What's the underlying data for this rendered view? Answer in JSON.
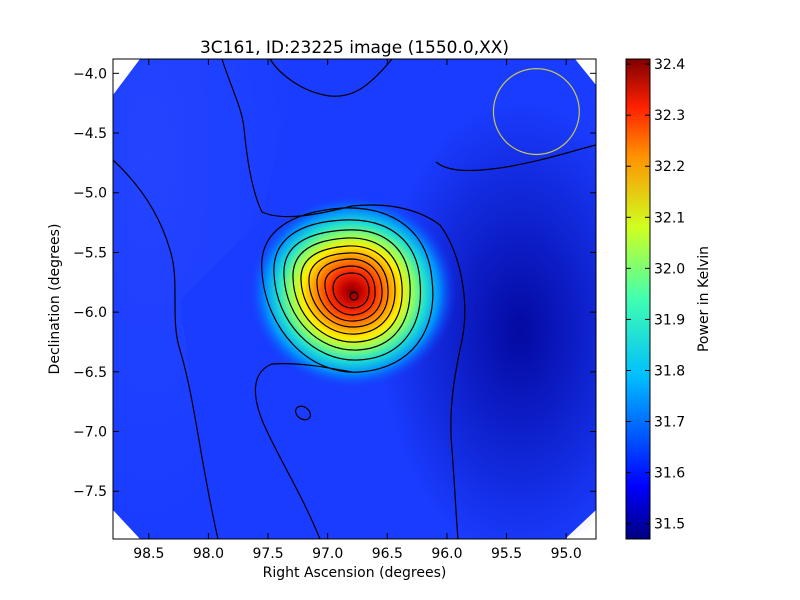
{
  "chart_data": {
    "type": "heatmap",
    "title": "3C161, ID:23225 image (1550.0,XX)",
    "xlabel": "Right Ascension (degrees)",
    "ylabel": "Declination (degrees)",
    "xlim": [
      98.8,
      94.75
    ],
    "ylim": [
      -7.9,
      -3.88
    ],
    "x_ticks": [
      "98.5",
      "98.0",
      "97.5",
      "97.0",
      "96.5",
      "96.0",
      "95.5",
      "95.0"
    ],
    "x_tick_values": [
      98.5,
      98.0,
      97.5,
      97.0,
      96.5,
      96.0,
      95.5,
      95.0
    ],
    "y_ticks": [
      "−4.0",
      "−4.5",
      "−5.0",
      "−5.5",
      "−6.0",
      "−6.5",
      "−7.0",
      "−7.5"
    ],
    "y_tick_values": [
      -4.0,
      -4.5,
      -5.0,
      -5.5,
      -6.0,
      -6.5,
      -7.0,
      -7.5
    ],
    "colorbar": {
      "label": "Power in Kelvin",
      "range": [
        31.47,
        32.41
      ],
      "ticks": [
        "31.5",
        "31.6",
        "31.7",
        "31.8",
        "31.9",
        "32.0",
        "32.1",
        "32.2",
        "32.3",
        "32.4"
      ],
      "tick_values": [
        31.5,
        31.6,
        31.7,
        31.8,
        31.9,
        32.0,
        32.1,
        32.2,
        32.3,
        32.4
      ],
      "colormap": "jet"
    },
    "peak": {
      "ra": 96.78,
      "dec": -5.87,
      "value": 32.41
    },
    "beam_circle": {
      "ra": 95.25,
      "dec": -4.32,
      "radius_deg": 0.36,
      "color": "#c8c850"
    },
    "contours": {
      "color": "#000000"
    }
  }
}
